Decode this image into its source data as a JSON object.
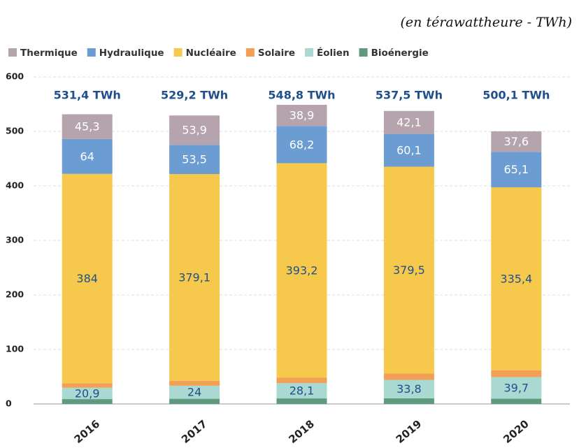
{
  "chart_data": {
    "type": "stacked_bar",
    "subtitle": "(en térawattheure - TWh)",
    "categories": [
      "2016",
      "2017",
      "2018",
      "2019",
      "2020"
    ],
    "series": [
      {
        "name": "Thermique",
        "color": "#b5a4ae",
        "label_color": "#ffffff",
        "values": [
          45.3,
          53.9,
          38.9,
          42.1,
          37.6
        ],
        "value_labels": [
          "45,3",
          "53,9",
          "38,9",
          "42,1",
          "37,6"
        ]
      },
      {
        "name": "Hydraulique",
        "color": "#6b9dd2",
        "label_color": "#ffffff",
        "values": [
          64,
          53.5,
          68.2,
          60.1,
          65.1
        ],
        "value_labels": [
          "64",
          "53,5",
          "68,2",
          "60,1",
          "65,1"
        ]
      },
      {
        "name": "Nucléaire",
        "color": "#f6c94c",
        "label_color": "#1f4f8c",
        "values": [
          384,
          379.1,
          393.2,
          379.5,
          335.4
        ],
        "value_labels": [
          "384",
          "379,1",
          "393,2",
          "379,5",
          "335,4"
        ]
      },
      {
        "name": "Solaire",
        "color": "#f1a055",
        "values": [
          8.3,
          9.2,
          10.2,
          11.6,
          12.6
        ]
      },
      {
        "name": "Éolien",
        "color": "#a9d9d0",
        "label_color": "#1f4f8c",
        "values": [
          20.9,
          24,
          28.1,
          33.8,
          39.7
        ],
        "value_labels": [
          "20,9",
          "24",
          "28,1",
          "33,8",
          "39,7"
        ]
      },
      {
        "name": "Bioénergie",
        "color": "#5f9a7f",
        "values": [
          8.9,
          9.5,
          10.2,
          10.4,
          9.7
        ]
      }
    ],
    "totals": [
      {
        "value": 531.4,
        "label": "531,4 TWh"
      },
      {
        "value": 529.2,
        "label": "529,2 TWh"
      },
      {
        "value": 548.8,
        "label": "548,8 TWh"
      },
      {
        "value": 537.5,
        "label": "537,5 TWh"
      },
      {
        "value": 500.1,
        "label": "500,1 TWh"
      }
    ],
    "ylim": [
      0,
      600
    ],
    "yticks": [
      0,
      100,
      200,
      300,
      400,
      500,
      600
    ],
    "grid": true
  }
}
